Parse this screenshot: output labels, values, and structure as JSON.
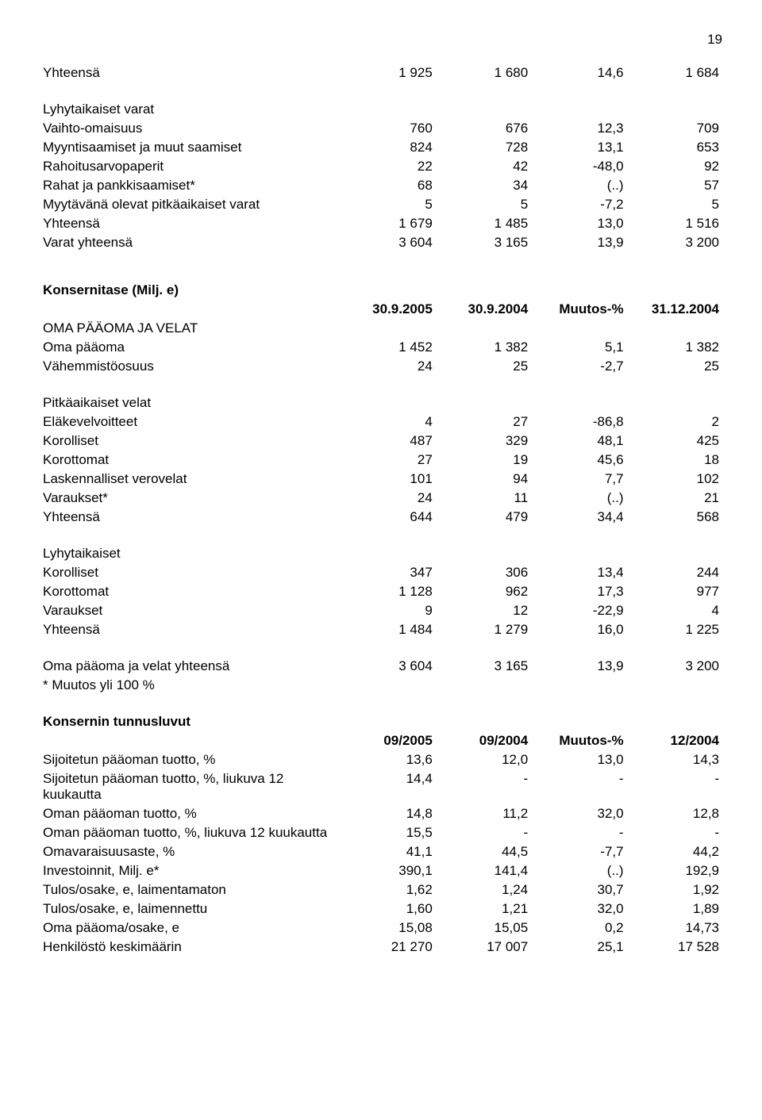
{
  "page_number": "19",
  "section1": {
    "rows": [
      {
        "label": "Yhteensä",
        "c1": "1 925",
        "c2": "1 680",
        "c3": "14,6",
        "c4": "1 684"
      }
    ],
    "subheading": "Lyhytaikaiset varat",
    "rows2": [
      {
        "label": "Vaihto-omaisuus",
        "c1": "760",
        "c2": "676",
        "c3": "12,3",
        "c4": "709"
      },
      {
        "label": "Myyntisaamiset ja muut saamiset",
        "c1": "824",
        "c2": "728",
        "c3": "13,1",
        "c4": "653"
      },
      {
        "label": "Rahoitusarvopaperit",
        "c1": "22",
        "c2": "42",
        "c3": "-48,0",
        "c4": "92"
      },
      {
        "label": "Rahat ja pankkisaamiset*",
        "c1": "68",
        "c2": "34",
        "c3": "(..)",
        "c4": "57"
      },
      {
        "label": "Myytävänä olevat pitkäaikaiset varat",
        "c1": "5",
        "c2": "5",
        "c3": "-7,2",
        "c4": "5"
      },
      {
        "label": "Yhteensä",
        "c1": "1 679",
        "c2": "1 485",
        "c3": "13,0",
        "c4": "1 516"
      },
      {
        "label": "Varat yhteensä",
        "c1": "3 604",
        "c2": "3 165",
        "c3": "13,9",
        "c4": "3 200"
      }
    ]
  },
  "section2": {
    "heading": "Konsernitase (Milj. e)",
    "header": {
      "c1": "30.9.2005",
      "c2": "30.9.2004",
      "c3": "Muutos-%",
      "c4": "31.12.2004"
    },
    "group_heading": "OMA PÄÄOMA JA VELAT",
    "group1": [
      {
        "label": "Oma pääoma",
        "c1": "1 452",
        "c2": "1 382",
        "c3": "5,1",
        "c4": "1 382"
      },
      {
        "label": "Vähemmistöosuus",
        "c1": "24",
        "c2": "25",
        "c3": "-2,7",
        "c4": "25"
      }
    ],
    "sub_heading_a": "Pitkäaikaiset velat",
    "group_a": [
      {
        "label": "Eläkevelvoitteet",
        "c1": "4",
        "c2": "27",
        "c3": "-86,8",
        "c4": "2"
      },
      {
        "label": "Korolliset",
        "c1": "487",
        "c2": "329",
        "c3": "48,1",
        "c4": "425"
      },
      {
        "label": "Korottomat",
        "c1": "27",
        "c2": "19",
        "c3": "45,6",
        "c4": "18"
      },
      {
        "label": "Laskennalliset verovelat",
        "c1": "101",
        "c2": "94",
        "c3": "7,7",
        "c4": "102"
      },
      {
        "label": "Varaukset*",
        "c1": "24",
        "c2": "11",
        "c3": "(..)",
        "c4": "21"
      },
      {
        "label": "Yhteensä",
        "c1": "644",
        "c2": "479",
        "c3": "34,4",
        "c4": "568"
      }
    ],
    "sub_heading_b": "Lyhytaikaiset",
    "group_b": [
      {
        "label": "Korolliset",
        "c1": "347",
        "c2": "306",
        "c3": "13,4",
        "c4": "244"
      },
      {
        "label": "Korottomat",
        "c1": "1 128",
        "c2": "962",
        "c3": "17,3",
        "c4": "977"
      },
      {
        "label": "Varaukset",
        "c1": "9",
        "c2": "12",
        "c3": "-22,9",
        "c4": "4"
      },
      {
        "label": "Yhteensä",
        "c1": "1 484",
        "c2": "1 279",
        "c3": "16,0",
        "c4": "1 225"
      }
    ],
    "total_row": {
      "label": "Oma pääoma ja velat yhteensä",
      "c1": "3 604",
      "c2": "3 165",
      "c3": "13,9",
      "c4": "3 200"
    },
    "footnote": "* Muutos yli 100 %"
  },
  "section3": {
    "heading": "Konsernin tunnusluvut",
    "header": {
      "c1": "09/2005",
      "c2": "09/2004",
      "c3": "Muutos-%",
      "c4": "12/2004"
    },
    "rows": [
      {
        "label": "Sijoitetun pääoman tuotto, %",
        "c1": "13,6",
        "c2": "12,0",
        "c3": "13,0",
        "c4": "14,3"
      },
      {
        "label": "Sijoitetun pääoman tuotto, %, liukuva 12 kuukautta",
        "c1": "14,4",
        "c2": "-",
        "c3": "-",
        "c4": "-"
      },
      {
        "label": "Oman pääoman tuotto, %",
        "c1": "14,8",
        "c2": "11,2",
        "c3": "32,0",
        "c4": "12,8"
      },
      {
        "label": "Oman pääoman tuotto, %, liukuva 12 kuukautta",
        "c1": "15,5",
        "c2": "-",
        "c3": "-",
        "c4": "-"
      },
      {
        "label": "Omavaraisuusaste, %",
        "c1": "41,1",
        "c2": "44,5",
        "c3": "-7,7",
        "c4": "44,2"
      },
      {
        "label": "Investoinnit, Milj. e*",
        "c1": "390,1",
        "c2": "141,4",
        "c3": "(..)",
        "c4": "192,9"
      },
      {
        "label": "Tulos/osake, e, laimentamaton",
        "c1": "1,62",
        "c2": "1,24",
        "c3": "30,7",
        "c4": "1,92"
      },
      {
        "label": "Tulos/osake, e, laimennettu",
        "c1": "1,60",
        "c2": "1,21",
        "c3": "32,0",
        "c4": "1,89"
      },
      {
        "label": "Oma pääoma/osake, e",
        "c1": "15,08",
        "c2": "15,05",
        "c3": "0,2",
        "c4": "14,73"
      },
      {
        "label": "Henkilöstö keskimäärin",
        "c1": "21 270",
        "c2": "17 007",
        "c3": "25,1",
        "c4": "17 528"
      }
    ]
  }
}
